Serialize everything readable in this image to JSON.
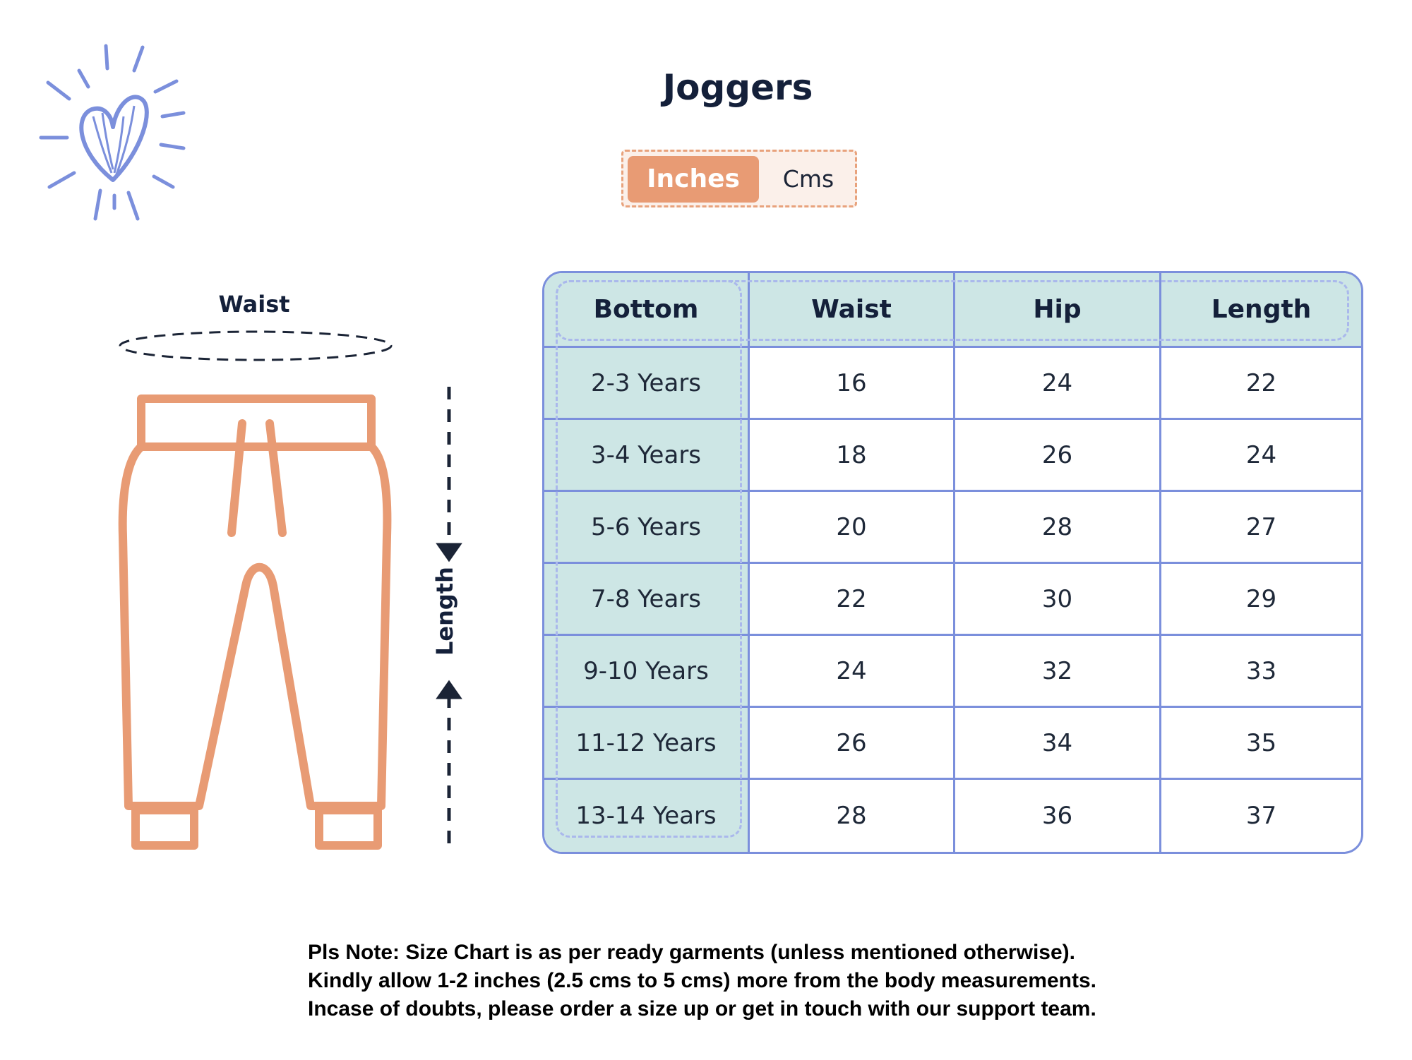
{
  "title": "Joggers",
  "unit_toggle": {
    "active": "Inches",
    "inactive": "Cms"
  },
  "illustration": {
    "waist_label": "Waist",
    "length_label": "Length"
  },
  "table": {
    "headers": [
      "Bottom",
      "Waist",
      "Hip",
      "Length"
    ],
    "rows": [
      [
        "2-3 Years",
        "16",
        "24",
        "22"
      ],
      [
        "3-4 Years",
        "18",
        "26",
        "24"
      ],
      [
        "5-6 Years",
        "20",
        "28",
        "27"
      ],
      [
        "7-8 Years",
        "22",
        "30",
        "29"
      ],
      [
        "9-10 Years",
        "24",
        "32",
        "33"
      ],
      [
        "11-12 Years",
        "26",
        "34",
        "35"
      ],
      [
        "13-14 Years",
        "28",
        "36",
        "37"
      ]
    ]
  },
  "note": {
    "line1": "Pls Note: Size Chart is as per ready garments (unless mentioned otherwise).",
    "line2": "Kindly allow 1-2 inches (2.5 cms to 5 cms) more from the body measurements.",
    "line3": "Incase of doubts, please order a size up or get in touch with our support team."
  },
  "colors": {
    "accent": "#e89b74",
    "table_border": "#7b8fdc",
    "header_bg": "#cde6e5",
    "logo": "#7b8fdc"
  },
  "icons": {
    "logo": "heart-burst-icon",
    "pants": "joggers-outline-icon"
  }
}
